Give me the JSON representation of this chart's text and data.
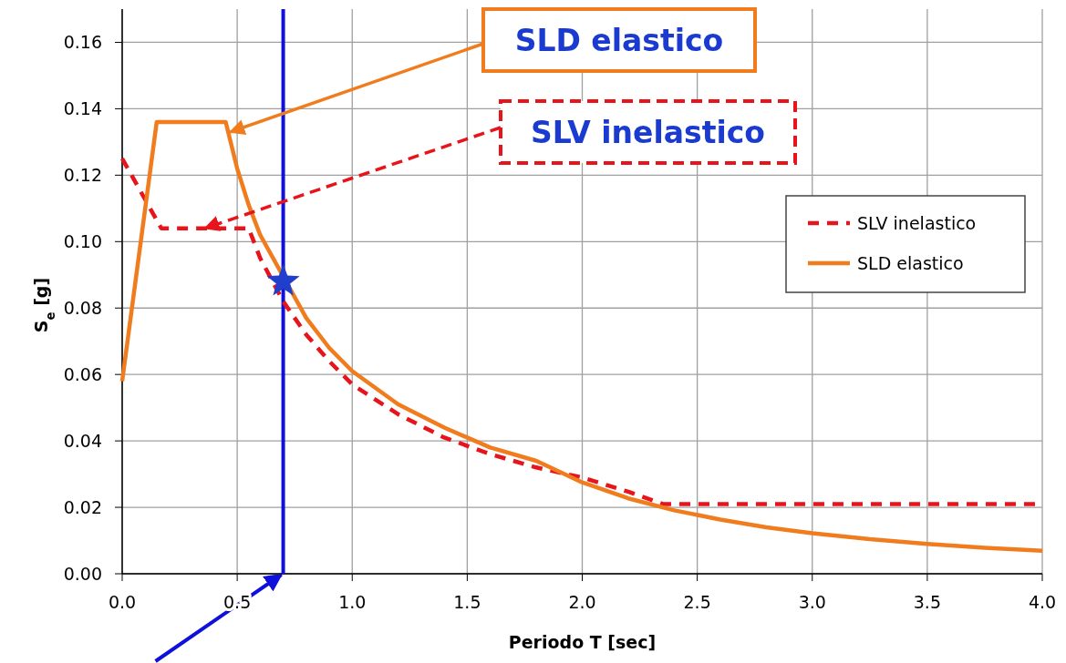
{
  "chart_data": {
    "type": "line",
    "xlabel": "Periodo T [sec]",
    "ylabel": "S$_{e}$ [g]",
    "xlim": [
      0,
      4
    ],
    "ylim": [
      0,
      0.17
    ],
    "xticks": [
      {
        "value": 0,
        "label": "0.0"
      },
      {
        "value": 0.5,
        "label": "0.5"
      },
      {
        "value": 1,
        "label": "1.0"
      },
      {
        "value": 1.5,
        "label": "1.5"
      },
      {
        "value": 2,
        "label": "2.0"
      },
      {
        "value": 2.5,
        "label": "2.5"
      },
      {
        "value": 3,
        "label": "3.0"
      },
      {
        "value": 3.5,
        "label": "3.5"
      },
      {
        "value": 4,
        "label": "4.0"
      }
    ],
    "yticks": [
      {
        "value": 0,
        "label": "0.00"
      },
      0.02,
      0.04,
      0.06,
      0.08,
      {
        "value": 0.1,
        "label": "0.10"
      },
      0.12,
      0.14,
      0.16
    ],
    "grid": true,
    "legend": "right",
    "marker": "none",
    "series": [
      {
        "name": "SLV inelastico",
        "color": "#e8141b",
        "line_style": "dashed",
        "x": [
          0,
          0.17,
          0.55,
          0.6,
          0.7,
          0.8,
          0.9,
          1.0,
          1.2,
          1.4,
          1.6,
          1.8,
          2.0,
          2.2,
          2.35,
          4.0
        ],
        "values": [
          0.125,
          0.104,
          0.104,
          0.095,
          0.082,
          0.072,
          0.064,
          0.057,
          0.048,
          0.041,
          0.036,
          0.032,
          0.029,
          0.0247,
          0.021,
          0.021
        ]
      },
      {
        "name": "SLD elastico",
        "color": "#f07c1e",
        "line_style": "solid",
        "x": [
          0,
          0.15,
          0.45,
          0.5,
          0.55,
          0.6,
          0.8,
          0.9,
          1.0,
          1.2,
          1.4,
          1.6,
          1.8,
          2.0,
          2.2,
          2.4,
          2.6,
          2.8,
          3.0,
          3.25,
          3.5,
          3.75,
          4.0
        ],
        "values": [
          0.058,
          0.136,
          0.136,
          0.122,
          0.111,
          0.102,
          0.077,
          0.068,
          0.061,
          0.051,
          0.044,
          0.038,
          0.034,
          0.0275,
          0.0227,
          0.0191,
          0.0163,
          0.014,
          0.0122,
          0.0104,
          0.009,
          0.0078,
          0.0069
        ]
      },
      {
        "type": "scatter",
        "color": "#1f3fcc",
        "marker": "star",
        "x": [
          0.7
        ],
        "values": [
          0.088
        ]
      }
    ],
    "ref_lines": [
      {
        "axis": "x",
        "value": 0.7,
        "color": "#1010dd"
      }
    ],
    "annotations": [
      {
        "text": "SLD elastico",
        "x": 0.47,
        "y": 0.133
      },
      {
        "text": "SLV inelastico",
        "x": 0.36,
        "y": 0.104
      }
    ]
  }
}
